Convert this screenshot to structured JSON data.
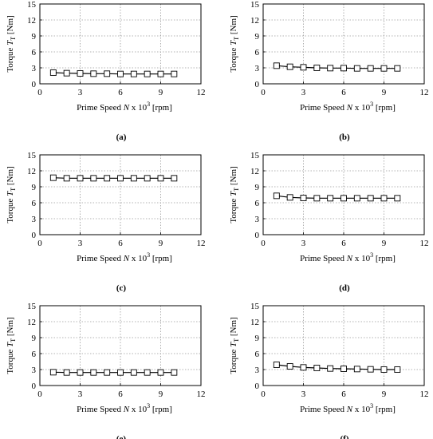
{
  "chart_data": [
    {
      "type": "line",
      "caption": "(a)",
      "x": [
        1,
        2,
        3,
        4,
        5,
        6,
        7,
        8,
        9,
        10
      ],
      "series": [
        {
          "values": [
            2.1,
            2.0,
            1.95,
            1.9,
            1.9,
            1.85,
            1.85,
            1.85,
            1.85,
            1.85
          ]
        }
      ],
      "xlim": [
        0,
        12
      ],
      "ylim": [
        0,
        15
      ],
      "xticks": [
        0,
        3,
        6,
        9,
        12
      ],
      "yticks": [
        0,
        3,
        6,
        9,
        12,
        15
      ],
      "xlabel": "Prime Speed",
      "xlabel_sym": "N x 10",
      "xlabel_exp": "3",
      "xlabel_unit": "[rpm]",
      "ylabel": "Torque",
      "ylabel_sym": "T",
      "ylabel_sub": "T",
      "ylabel_unit": "[Nm]",
      "grid": true
    },
    {
      "type": "line",
      "caption": "(b)",
      "x": [
        1,
        2,
        3,
        4,
        5,
        6,
        7,
        8,
        9,
        10
      ],
      "series": [
        {
          "values": [
            3.4,
            3.2,
            3.1,
            3.0,
            2.95,
            2.95,
            2.9,
            2.9,
            2.9,
            2.9
          ]
        }
      ],
      "xlim": [
        0,
        12
      ],
      "ylim": [
        0,
        15
      ],
      "xticks": [
        0,
        3,
        6,
        9,
        12
      ],
      "yticks": [
        0,
        3,
        6,
        9,
        12,
        15
      ],
      "xlabel": "Prime Speed",
      "xlabel_sym": "N x 10",
      "xlabel_exp": "3",
      "xlabel_unit": "[rpm]",
      "ylabel": "Torque",
      "ylabel_sym": "T",
      "ylabel_sub": "T",
      "ylabel_unit": "[Nm]",
      "grid": true
    },
    {
      "type": "line",
      "caption": "(c)",
      "x": [
        1,
        2,
        3,
        4,
        5,
        6,
        7,
        8,
        9,
        10
      ],
      "series": [
        {
          "values": [
            10.7,
            10.6,
            10.6,
            10.6,
            10.6,
            10.6,
            10.6,
            10.6,
            10.6,
            10.6
          ]
        }
      ],
      "xlim": [
        0,
        12
      ],
      "ylim": [
        0,
        15
      ],
      "xticks": [
        0,
        3,
        6,
        9,
        12
      ],
      "yticks": [
        0,
        3,
        6,
        9,
        12,
        15
      ],
      "xlabel": "Prime Speed",
      "xlabel_sym": "N x 10",
      "xlabel_exp": "3",
      "xlabel_unit": "[rpm]",
      "ylabel": "Torque",
      "ylabel_sym": "T",
      "ylabel_sub": "T",
      "ylabel_unit": "[Nm]",
      "grid": true
    },
    {
      "type": "line",
      "caption": "(d)",
      "x": [
        1,
        2,
        3,
        4,
        5,
        6,
        7,
        8,
        9,
        10
      ],
      "series": [
        {
          "values": [
            7.3,
            7.0,
            6.9,
            6.85,
            6.85,
            6.85,
            6.85,
            6.85,
            6.85,
            6.85
          ]
        }
      ],
      "xlim": [
        0,
        12
      ],
      "ylim": [
        0,
        15
      ],
      "xticks": [
        0,
        3,
        6,
        9,
        12
      ],
      "yticks": [
        0,
        3,
        6,
        9,
        12,
        15
      ],
      "xlabel": "Prime Speed",
      "xlabel_sym": "N x 10",
      "xlabel_exp": "3",
      "xlabel_unit": "[rpm]",
      "ylabel": "Torque",
      "ylabel_sym": "T",
      "ylabel_sub": "T",
      "ylabel_unit": "[Nm]",
      "grid": true
    },
    {
      "type": "line",
      "caption": "(e)",
      "x": [
        1,
        2,
        3,
        4,
        5,
        6,
        7,
        8,
        9,
        10
      ],
      "series": [
        {
          "values": [
            2.5,
            2.45,
            2.45,
            2.45,
            2.45,
            2.45,
            2.45,
            2.45,
            2.45,
            2.45
          ]
        }
      ],
      "xlim": [
        0,
        12
      ],
      "ylim": [
        0,
        15
      ],
      "xticks": [
        0,
        3,
        6,
        9,
        12
      ],
      "yticks": [
        0,
        3,
        6,
        9,
        12,
        15
      ],
      "xlabel": "Prime Speed",
      "xlabel_sym": "N x 10",
      "xlabel_exp": "3",
      "xlabel_unit": "[rpm]",
      "ylabel": "Torque",
      "ylabel_sym": "T",
      "ylabel_sub": "T",
      "ylabel_unit": "[Nm]",
      "grid": true
    },
    {
      "type": "line",
      "caption": "(f)",
      "x": [
        1,
        2,
        3,
        4,
        5,
        6,
        7,
        8,
        9,
        10
      ],
      "series": [
        {
          "values": [
            3.9,
            3.6,
            3.4,
            3.3,
            3.2,
            3.15,
            3.1,
            3.05,
            3.0,
            3.0
          ]
        }
      ],
      "xlim": [
        0,
        12
      ],
      "ylim": [
        0,
        15
      ],
      "xticks": [
        0,
        3,
        6,
        9,
        12
      ],
      "yticks": [
        0,
        3,
        6,
        9,
        12,
        15
      ],
      "xlabel": "Prime Speed",
      "xlabel_sym": "N x 10",
      "xlabel_exp": "3",
      "xlabel_unit": "[rpm]",
      "ylabel": "Torque",
      "ylabel_sym": "T",
      "ylabel_sub": "T",
      "ylabel_unit": "[Nm]",
      "grid": true
    }
  ]
}
